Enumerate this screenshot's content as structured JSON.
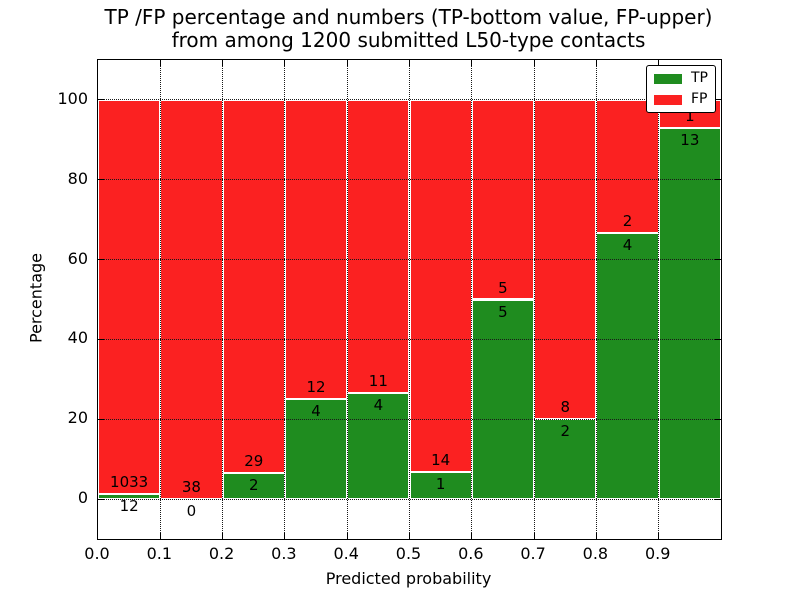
{
  "title": "TP /FP percentage and numbers (TP-bottom value, FP-upper)\nfrom among 1200 submitted L50-type contacts",
  "chart_data": {
    "type": "bar",
    "stacked": true,
    "title": "TP /FP percentage and numbers (TP-bottom value, FP-upper)\nfrom among 1200 submitted L50-type contacts",
    "xlabel": "Predicted probability",
    "ylabel": "Percentage",
    "xlim": [
      0.0,
      1.0
    ],
    "ylim": [
      -10,
      110
    ],
    "grid": "dotted",
    "legend_position": "upper right",
    "x_tick_labels": [
      "0.0",
      "0.1",
      "0.2",
      "0.3",
      "0.4",
      "0.5",
      "0.6",
      "0.7",
      "0.8",
      "0.9"
    ],
    "y_tick_values": [
      0,
      20,
      40,
      60,
      80,
      100
    ],
    "total_contacts": 1200,
    "series": [
      {
        "name": "TP",
        "color": "#1f8c1f"
      },
      {
        "name": "FP",
        "color": "#fb2121"
      }
    ],
    "bins": [
      {
        "range": [
          0.0,
          0.1
        ],
        "tp": 12,
        "fp": 1033,
        "tp_pct": 1.15
      },
      {
        "range": [
          0.1,
          0.2
        ],
        "tp": 0,
        "fp": 38,
        "tp_pct": 0.0
      },
      {
        "range": [
          0.2,
          0.3
        ],
        "tp": 2,
        "fp": 29,
        "tp_pct": 6.45
      },
      {
        "range": [
          0.3,
          0.4
        ],
        "tp": 4,
        "fp": 12,
        "tp_pct": 25.0
      },
      {
        "range": [
          0.4,
          0.5
        ],
        "tp": 4,
        "fp": 11,
        "tp_pct": 26.67
      },
      {
        "range": [
          0.5,
          0.6
        ],
        "tp": 1,
        "fp": 14,
        "tp_pct": 6.67
      },
      {
        "range": [
          0.6,
          0.7
        ],
        "tp": 5,
        "fp": 5,
        "tp_pct": 50.0
      },
      {
        "range": [
          0.7,
          0.8
        ],
        "tp": 2,
        "fp": 8,
        "tp_pct": 20.0
      },
      {
        "range": [
          0.8,
          0.9
        ],
        "tp": 4,
        "fp": 2,
        "tp_pct": 66.67
      },
      {
        "range": [
          0.9,
          1.0
        ],
        "tp": 13,
        "fp": 1,
        "tp_pct": 92.86
      }
    ]
  }
}
